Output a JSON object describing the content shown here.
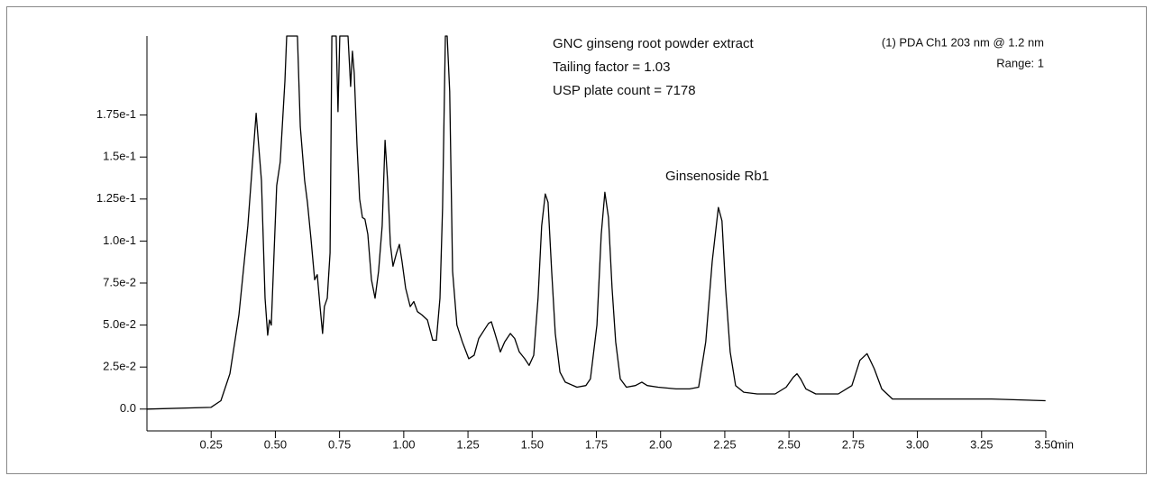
{
  "chart_data": {
    "type": "line",
    "annotations": [
      "GNC ginseng root powder extract",
      "Tailing factor = 1.03",
      "USP plate count = 7178",
      "Ginsenoside Rb1"
    ],
    "detector_label": "(1) PDA Ch1 203 nm @ 1.2 nm",
    "range_label": "Range: 1",
    "xlabel": "min",
    "color": "#000000",
    "xlim": [
      0,
      3.5
    ],
    "ylim": [
      -0.013,
      0.222
    ],
    "xticks": [
      0.25,
      {
        "value": 0.5,
        "label": "0.50"
      },
      0.75,
      {
        "value": 1,
        "label": "1.00"
      },
      1.25,
      {
        "value": 1.5,
        "label": "1.50"
      },
      1.75,
      {
        "value": 2,
        "label": "2.00"
      },
      2.25,
      {
        "value": 2.5,
        "label": "2.50"
      },
      2.75,
      {
        "value": 3,
        "label": "3.00"
      },
      3.25,
      {
        "value": 3.5,
        "label": "3.50"
      }
    ],
    "yticks": [
      {
        "value": 0,
        "label": "0.0"
      },
      {
        "value": 0.025,
        "label": "2.5e-2"
      },
      {
        "value": 0.05,
        "label": "5.0e-2"
      },
      {
        "value": 0.075,
        "label": "7.5e-2"
      },
      {
        "value": 0.1,
        "label": "1.0e-1"
      },
      {
        "value": 0.125,
        "label": "1.25e-1"
      },
      {
        "value": 0.15,
        "label": "1.5e-1"
      },
      {
        "value": 0.175,
        "label": "1.75e-1"
      }
    ],
    "x": [
      0,
      0.249,
      0.288,
      0.323,
      0.358,
      0.393,
      0.425,
      0.446,
      0.46,
      0.47,
      0.477,
      0.484,
      0.495,
      0.505,
      0.519,
      0.537,
      0.544,
      0.586,
      0.597,
      0.614,
      0.625,
      0.639,
      0.653,
      0.663,
      0.674,
      0.684,
      0.691,
      0.702,
      0.713,
      0.72,
      0.737,
      0.744,
      0.751,
      0.783,
      0.793,
      0.8,
      0.807,
      0.818,
      0.828,
      0.839,
      0.849,
      0.86,
      0.874,
      0.888,
      0.902,
      0.916,
      0.927,
      0.937,
      0.948,
      0.958,
      0.972,
      0.983,
      0.993,
      1.007,
      1.025,
      1.039,
      1.053,
      1.071,
      1.092,
      1.113,
      1.127,
      1.141,
      1.151,
      1.162,
      1.169,
      1.179,
      1.19,
      1.207,
      1.228,
      1.253,
      1.274,
      1.292,
      1.313,
      1.33,
      1.341,
      1.355,
      1.376,
      1.393,
      1.415,
      1.432,
      1.45,
      1.471,
      1.488,
      1.506,
      1.523,
      1.537,
      1.551,
      1.562,
      1.576,
      1.59,
      1.608,
      1.629,
      1.674,
      1.709,
      1.727,
      1.752,
      1.769,
      1.783,
      1.797,
      1.811,
      1.825,
      1.843,
      1.867,
      1.902,
      1.927,
      1.948,
      1.99,
      2.06,
      2.113,
      2.148,
      2.176,
      2.201,
      2.225,
      2.239,
      2.253,
      2.271,
      2.292,
      2.324,
      2.376,
      2.446,
      2.489,
      2.517,
      2.531,
      2.545,
      2.566,
      2.604,
      2.692,
      2.745,
      2.776,
      2.804,
      2.832,
      2.861,
      2.903,
      3.043,
      3.289,
      3.499
    ],
    "values": [
      0,
      0.001,
      0.005,
      0.021,
      0.056,
      0.109,
      0.176,
      0.136,
      0.066,
      0.044,
      0.053,
      0.05,
      0.093,
      0.133,
      0.147,
      0.195,
      0.222,
      0.222,
      0.168,
      0.136,
      0.123,
      0.101,
      0.077,
      0.08,
      0.061,
      0.045,
      0.061,
      0.066,
      0.093,
      0.222,
      0.222,
      0.177,
      0.222,
      0.222,
      0.192,
      0.213,
      0.2,
      0.157,
      0.125,
      0.114,
      0.113,
      0.104,
      0.077,
      0.066,
      0.082,
      0.109,
      0.16,
      0.136,
      0.098,
      0.085,
      0.093,
      0.098,
      0.088,
      0.072,
      0.061,
      0.064,
      0.058,
      0.056,
      0.053,
      0.041,
      0.041,
      0.066,
      0.12,
      0.222,
      0.222,
      0.189,
      0.082,
      0.05,
      0.04,
      0.03,
      0.032,
      0.042,
      0.047,
      0.051,
      0.052,
      0.045,
      0.034,
      0.04,
      0.045,
      0.042,
      0.034,
      0.03,
      0.026,
      0.032,
      0.066,
      0.109,
      0.128,
      0.123,
      0.082,
      0.045,
      0.022,
      0.016,
      0.013,
      0.014,
      0.018,
      0.05,
      0.104,
      0.129,
      0.114,
      0.072,
      0.04,
      0.018,
      0.013,
      0.014,
      0.016,
      0.014,
      0.013,
      0.012,
      0.012,
      0.013,
      0.04,
      0.088,
      0.12,
      0.112,
      0.072,
      0.034,
      0.014,
      0.01,
      0.009,
      0.009,
      0.013,
      0.019,
      0.021,
      0.018,
      0.012,
      0.009,
      0.009,
      0.014,
      0.029,
      0.033,
      0.024,
      0.012,
      0.006,
      0.006,
      0.006,
      0.005
    ]
  }
}
